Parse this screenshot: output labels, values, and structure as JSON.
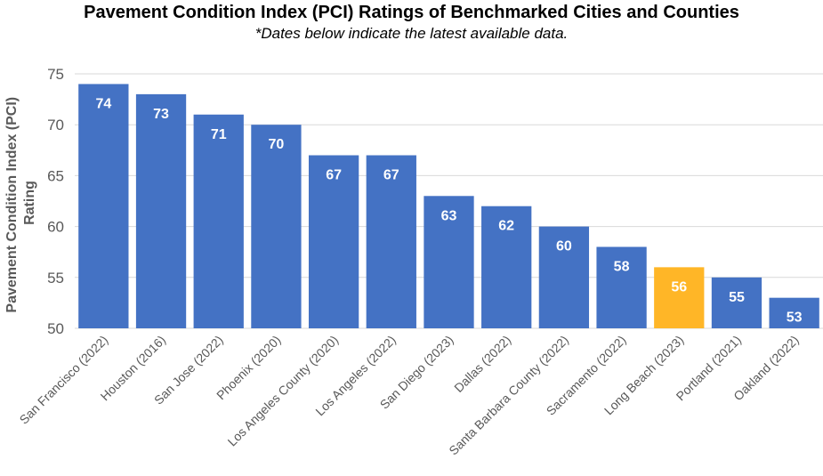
{
  "chart_data": {
    "type": "bar",
    "title": "Pavement Condition Index (PCI) Ratings of Benchmarked Cities and Counties",
    "subtitle": "*Dates below indicate the latest available data.",
    "ylabel_lines": [
      "Pavement Condition Index (PCI)",
      "Rating"
    ],
    "xlabel": "",
    "ylim": [
      50,
      75
    ],
    "yticks": [
      50,
      55,
      60,
      65,
      70,
      75
    ],
    "grid": true,
    "legend": "none",
    "categories": [
      "San Francisco (2022)",
      "Houston (2016)",
      "San Jose (2022)",
      "Phoenix (2020)",
      "Los Angeles County (2020)",
      "Los Angeles (2022)",
      "San Diego (2023)",
      "Dallas (2022)",
      "Santa Barbara County (2022)",
      "Sacramento (2022)",
      "Long Beach (2023)",
      "Portland (2021)",
      "Oakland (2022)"
    ],
    "values": [
      74,
      73,
      71,
      70,
      67,
      67,
      63,
      62,
      60,
      58,
      56,
      55,
      53
    ],
    "colors": {
      "default": "#4472C4",
      "highlight": "#FFB627",
      "highlight_category": "Long Beach (2023)",
      "gridline": "#D9D9D9",
      "axis_text": "#595959"
    }
  }
}
